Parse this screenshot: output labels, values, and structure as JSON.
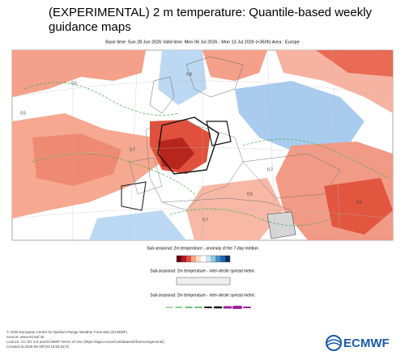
{
  "header": {
    "title": "(EXPERIMENTAL) 2 m temperature: Quantile-based weekly guidance maps",
    "subtitle": "Base time: Sun 28 Jun 2026 Valid time: Mon 06 Jul 2026 - Mon 13 Jul 2026 (+360h) Area : Europe"
  },
  "map": {
    "contour_labels": [
      "0.5",
      "0.5",
      "0.7",
      "0.7",
      "0.8",
      "0.5",
      "0.7",
      "0.5"
    ]
  },
  "legends": [
    {
      "title": "Sub-seasonal: 2m temperature - anomaly of the 7-day median"
    },
    {
      "title": "Sub-seasonal: 2m temperature - inter-decile spread metric"
    },
    {
      "title": "Sub-seasonal: 2m temperature - inter-decile spread metric"
    }
  ],
  "footer": {
    "lines": [
      "© 2026 European Centre for Medium-Range Weather Forecasts (ECMWF)",
      "Source: www.ecmwf.int",
      "Licence: CC BY 4.0 and ECMWF Terms of Use (https://apps.ecmwf.int/datasets/licences/general/)",
      "Created at 2026-06-28T20:10:05.517Z"
    ],
    "logo": "ECMWF"
  }
}
